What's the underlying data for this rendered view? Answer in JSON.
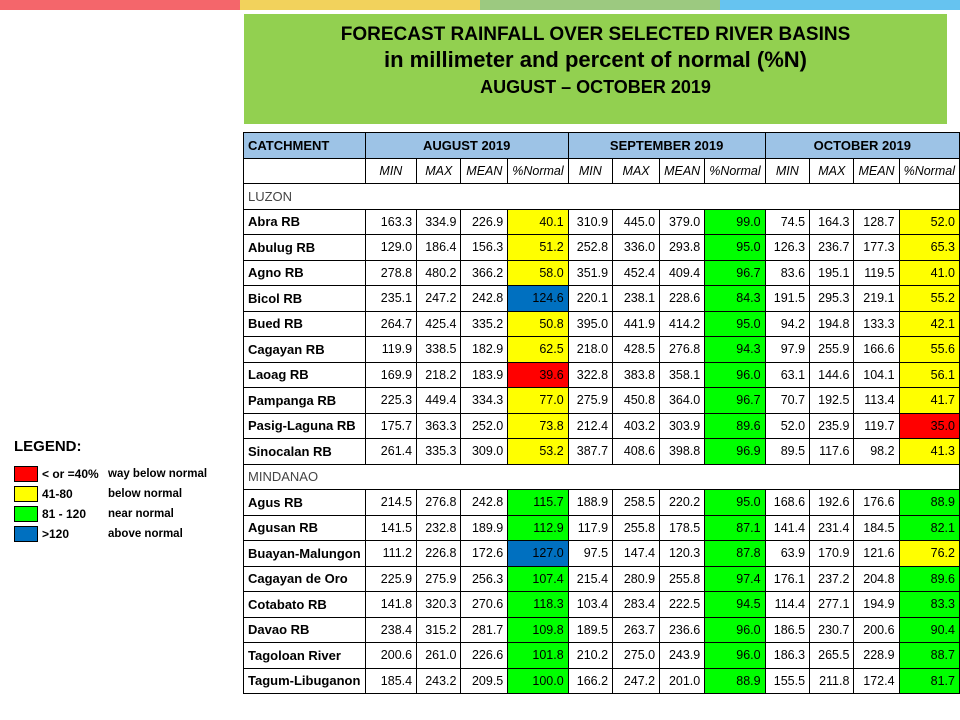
{
  "colors": {
    "top_bar": [
      "#f4666b",
      "#f2d25c",
      "#9cc980",
      "#66c3f0"
    ],
    "banner": "#92d050",
    "header": "#9dc3e6",
    "way_below": "#ff0000",
    "below": "#ffff00",
    "near": "#00ff00",
    "above": "#0070c0"
  },
  "banner": {
    "line1": "FORECAST RAINFALL OVER SELECTED RIVER BASINS",
    "line2": "in millimeter  and percent of normal (%N)",
    "line3": "AUGUST – OCTOBER 2019"
  },
  "table": {
    "catchment_header": "CATCHMENT",
    "months": [
      "AUGUST 2019",
      "SEPTEMBER 2019",
      "OCTOBER 2019"
    ],
    "subheaders": [
      "MIN",
      "MAX",
      "MEAN",
      "%Normal"
    ],
    "regions": [
      {
        "name": "LUZON",
        "rows": [
          {
            "name": "Abra RB",
            "values": [
              "163.3",
              "334.9",
              "226.9",
              "40.1",
              "310.9",
              "445.0",
              "379.0",
              "99.0",
              "74.5",
              "164.3",
              "128.7",
              "52.0"
            ],
            "categories": [
              "below",
              "near",
              "below"
            ]
          },
          {
            "name": "Abulug RB",
            "values": [
              "129.0",
              "186.4",
              "156.3",
              "51.2",
              "252.8",
              "336.0",
              "293.8",
              "95.0",
              "126.3",
              "236.7",
              "177.3",
              "65.3"
            ],
            "categories": [
              "below",
              "near",
              "below"
            ]
          },
          {
            "name": "Agno RB",
            "values": [
              "278.8",
              "480.2",
              "366.2",
              "58.0",
              "351.9",
              "452.4",
              "409.4",
              "96.7",
              "83.6",
              "195.1",
              "119.5",
              "41.0"
            ],
            "categories": [
              "below",
              "near",
              "below"
            ]
          },
          {
            "name": "Bicol RB",
            "values": [
              "235.1",
              "247.2",
              "242.8",
              "124.6",
              "220.1",
              "238.1",
              "228.6",
              "84.3",
              "191.5",
              "295.3",
              "219.1",
              "55.2"
            ],
            "categories": [
              "above",
              "near",
              "below"
            ]
          },
          {
            "name": "Bued RB",
            "values": [
              "264.7",
              "425.4",
              "335.2",
              "50.8",
              "395.0",
              "441.9",
              "414.2",
              "95.0",
              "94.2",
              "194.8",
              "133.3",
              "42.1"
            ],
            "categories": [
              "below",
              "near",
              "below"
            ]
          },
          {
            "name": "Cagayan RB",
            "values": [
              "119.9",
              "338.5",
              "182.9",
              "62.5",
              "218.0",
              "428.5",
              "276.8",
              "94.3",
              "97.9",
              "255.9",
              "166.6",
              "55.6"
            ],
            "categories": [
              "below",
              "near",
              "below"
            ]
          },
          {
            "name": "Laoag RB",
            "values": [
              "169.9",
              "218.2",
              "183.9",
              "39.6",
              "322.8",
              "383.8",
              "358.1",
              "96.0",
              "63.1",
              "144.6",
              "104.1",
              "56.1"
            ],
            "categories": [
              "way_below",
              "near",
              "below"
            ]
          },
          {
            "name": "Pampanga RB",
            "values": [
              "225.3",
              "449.4",
              "334.3",
              "77.0",
              "275.9",
              "450.8",
              "364.0",
              "96.7",
              "70.7",
              "192.5",
              "113.4",
              "41.7"
            ],
            "categories": [
              "below",
              "near",
              "below"
            ]
          },
          {
            "name": "Pasig-Laguna RB",
            "values": [
              "175.7",
              "363.3",
              "252.0",
              "73.8",
              "212.4",
              "403.2",
              "303.9",
              "89.6",
              "52.0",
              "235.9",
              "119.7",
              "35.0"
            ],
            "categories": [
              "below",
              "near",
              "way_below"
            ]
          },
          {
            "name": "Sinocalan RB",
            "values": [
              "261.4",
              "335.3",
              "309.0",
              "53.2",
              "387.7",
              "408.6",
              "398.8",
              "96.9",
              "89.5",
              "117.6",
              "98.2",
              "41.3"
            ],
            "categories": [
              "below",
              "near",
              "below"
            ]
          }
        ]
      },
      {
        "name": "MINDANAO",
        "rows": [
          {
            "name": "Agus RB",
            "values": [
              "214.5",
              "276.8",
              "242.8",
              "115.7",
              "188.9",
              "258.5",
              "220.2",
              "95.0",
              "168.6",
              "192.6",
              "176.6",
              "88.9"
            ],
            "categories": [
              "near",
              "near",
              "near"
            ]
          },
          {
            "name": "Agusan RB",
            "values": [
              "141.5",
              "232.8",
              "189.9",
              "112.9",
              "117.9",
              "255.8",
              "178.5",
              "87.1",
              "141.4",
              "231.4",
              "184.5",
              "82.1"
            ],
            "categories": [
              "near",
              "near",
              "near"
            ]
          },
          {
            "name": "Buayan-Malungon",
            "values": [
              "111.2",
              "226.8",
              "172.6",
              "127.0",
              "97.5",
              "147.4",
              "120.3",
              "87.8",
              "63.9",
              "170.9",
              "121.6",
              "76.2"
            ],
            "categories": [
              "above",
              "near",
              "below"
            ]
          },
          {
            "name": "Cagayan de Oro",
            "values": [
              "225.9",
              "275.9",
              "256.3",
              "107.4",
              "215.4",
              "280.9",
              "255.8",
              "97.4",
              "176.1",
              "237.2",
              "204.8",
              "89.6"
            ],
            "categories": [
              "near",
              "near",
              "near"
            ]
          },
          {
            "name": "Cotabato RB",
            "values": [
              "141.8",
              "320.3",
              "270.6",
              "118.3",
              "103.4",
              "283.4",
              "222.5",
              "94.5",
              "114.4",
              "277.1",
              "194.9",
              "83.3"
            ],
            "categories": [
              "near",
              "near",
              "near"
            ]
          },
          {
            "name": "Davao RB",
            "values": [
              "238.4",
              "315.2",
              "281.7",
              "109.8",
              "189.5",
              "263.7",
              "236.6",
              "96.0",
              "186.5",
              "230.7",
              "200.6",
              "90.4"
            ],
            "categories": [
              "near",
              "near",
              "near"
            ]
          },
          {
            "name": "Tagoloan River",
            "values": [
              "200.6",
              "261.0",
              "226.6",
              "101.8",
              "210.2",
              "275.0",
              "243.9",
              "96.0",
              "186.3",
              "265.5",
              "228.9",
              "88.7"
            ],
            "categories": [
              "near",
              "near",
              "near"
            ]
          },
          {
            "name": "Tagum-Libuganon",
            "values": [
              "185.4",
              "243.2",
              "209.5",
              "100.0",
              "166.2",
              "247.2",
              "201.0",
              "88.9",
              "155.5",
              "211.8",
              "172.4",
              "81.7"
            ],
            "categories": [
              "near",
              "near",
              "near"
            ]
          }
        ]
      }
    ]
  },
  "legend": {
    "title": "LEGEND:",
    "items": [
      {
        "range": "< or =40%",
        "desc": "way below normal",
        "category": "way_below"
      },
      {
        "range": "41-80",
        "desc": "below normal",
        "category": "below"
      },
      {
        "range": "81 - 120",
        "desc": "near normal",
        "category": "near"
      },
      {
        "range": ">120",
        "desc": "above normal",
        "category": "above"
      }
    ]
  }
}
